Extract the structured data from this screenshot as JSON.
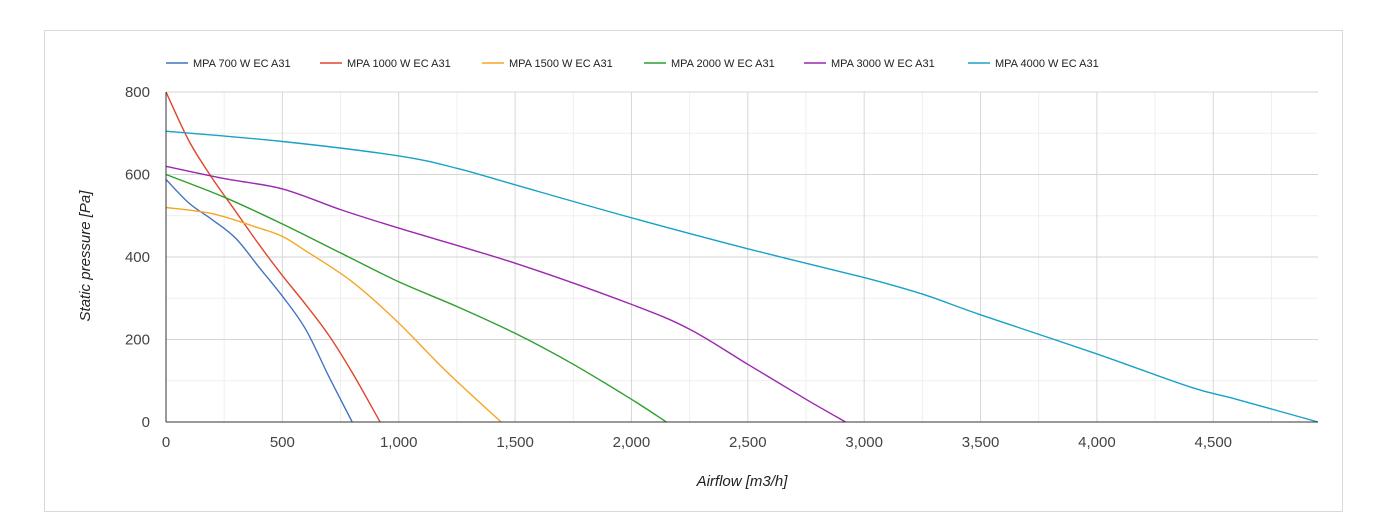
{
  "chart_data": {
    "type": "line",
    "xlabel": "Airflow [m3/h]",
    "ylabel": "Static pressure [Pa]",
    "xlim": [
      0,
      4950
    ],
    "ylim": [
      0,
      800
    ],
    "x_ticks": [
      "0",
      "500",
      "1,000",
      "1,500",
      "2,000",
      "2,500",
      "3,000",
      "3,500",
      "4,000",
      "4,500"
    ],
    "x_tick_values": [
      0,
      500,
      1000,
      1500,
      2000,
      2500,
      3000,
      3500,
      4000,
      4500
    ],
    "y_ticks": [
      "0",
      "200",
      "400",
      "600",
      "800"
    ],
    "y_tick_values": [
      0,
      200,
      400,
      600,
      800
    ],
    "grid": true,
    "legend_position": "top-left",
    "series": [
      {
        "name": "MPA 700 W EC A31",
        "color": "#4472C4",
        "points": [
          [
            0,
            588
          ],
          [
            100,
            530
          ],
          [
            200,
            490
          ],
          [
            300,
            445
          ],
          [
            400,
            375
          ],
          [
            500,
            305
          ],
          [
            600,
            225
          ],
          [
            700,
            110
          ],
          [
            800,
            0
          ]
        ]
      },
      {
        "name": "MPA 1000 W EC A31",
        "color": "#E0452C",
        "points": [
          [
            0,
            800
          ],
          [
            100,
            680
          ],
          [
            200,
            590
          ],
          [
            300,
            510
          ],
          [
            400,
            430
          ],
          [
            500,
            355
          ],
          [
            600,
            285
          ],
          [
            700,
            210
          ],
          [
            800,
            120
          ],
          [
            920,
            0
          ]
        ]
      },
      {
        "name": "MPA 1500 W EC A31",
        "color": "#F5A623",
        "points": [
          [
            0,
            520
          ],
          [
            200,
            505
          ],
          [
            400,
            470
          ],
          [
            500,
            450
          ],
          [
            600,
            415
          ],
          [
            800,
            340
          ],
          [
            1000,
            240
          ],
          [
            1200,
            125
          ],
          [
            1440,
            0
          ]
        ]
      },
      {
        "name": "MPA 2000 W EC A31",
        "color": "#2CA02C",
        "points": [
          [
            0,
            600
          ],
          [
            250,
            545
          ],
          [
            500,
            480
          ],
          [
            750,
            410
          ],
          [
            1000,
            340
          ],
          [
            1250,
            280
          ],
          [
            1500,
            215
          ],
          [
            1750,
            140
          ],
          [
            2000,
            55
          ],
          [
            2150,
            0
          ]
        ]
      },
      {
        "name": "MPA 3000 W EC A31",
        "color": "#9C27B0",
        "points": [
          [
            0,
            620
          ],
          [
            250,
            590
          ],
          [
            500,
            565
          ],
          [
            750,
            515
          ],
          [
            1000,
            470
          ],
          [
            1500,
            385
          ],
          [
            2000,
            285
          ],
          [
            2250,
            225
          ],
          [
            2500,
            140
          ],
          [
            2750,
            55
          ],
          [
            2920,
            0
          ]
        ]
      },
      {
        "name": "MPA 4000 W EC A31",
        "color": "#17A2C8",
        "points": [
          [
            0,
            705
          ],
          [
            500,
            680
          ],
          [
            1000,
            645
          ],
          [
            1250,
            615
          ],
          [
            1500,
            575
          ],
          [
            2000,
            495
          ],
          [
            2500,
            420
          ],
          [
            3000,
            350
          ],
          [
            3250,
            310
          ],
          [
            3500,
            260
          ],
          [
            4000,
            165
          ],
          [
            4400,
            85
          ],
          [
            4600,
            55
          ],
          [
            4950,
            0
          ]
        ]
      }
    ]
  }
}
